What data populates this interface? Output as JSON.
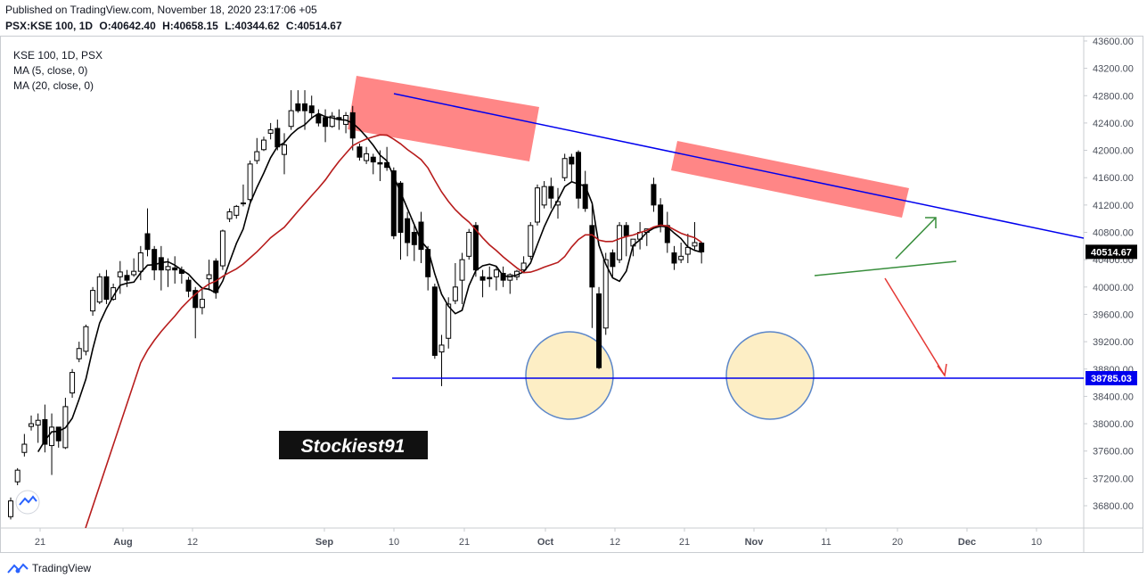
{
  "header": {
    "published": "Published on TradingView.com, November 18, 2020 23:17:06 +05",
    "symbol": "PSX:KSE 100, 1D",
    "exchange": "PSX",
    "open": "O:40642.40",
    "high": "H:40658.15",
    "low": "L:40344.62",
    "close": "C:40514.67"
  },
  "legend": {
    "title": "KSE 100, 1D, PSX",
    "ma5": "MA (5, close, 0)",
    "ma20": "MA (20, close, 0)"
  },
  "watermark": "Stockiest91",
  "footer": {
    "brand": "TradingView"
  },
  "colors": {
    "ma5": "#000000",
    "ma20": "#b71c1c",
    "trend": "#0000ee",
    "support": "#0000ee",
    "zone": "#ff5252",
    "circle": "#fdeec5",
    "up_arrow": "#388e3c",
    "down_arrow": "#e53935"
  },
  "chart_data": {
    "type": "candlestick",
    "y_axis_ticks": [
      "43600.00",
      "43200.00",
      "42800.00",
      "42400.00",
      "42000.00",
      "41600.00",
      "41200.00",
      "40800.00",
      "40400.00",
      "40000.00",
      "39600.00",
      "39200.00",
      "38800.00",
      "38400.00",
      "38000.00",
      "37600.00",
      "37200.00",
      "36800.00"
    ],
    "x_axis_ticks": [
      "21",
      "Aug",
      "12",
      "Sep",
      "10",
      "21",
      "Oct",
      "12",
      "21",
      "Nov",
      "11",
      "20",
      "Dec",
      "10"
    ],
    "price_labels": {
      "last": "40514.67",
      "support": "38785.03"
    },
    "ylim": [
      36500,
      43700
    ],
    "candles": [
      {
        "o": 36640,
        "h": 36920,
        "l": 36600,
        "c": 36870
      },
      {
        "o": 37150,
        "h": 37350,
        "l": 37100,
        "c": 37320
      },
      {
        "o": 37580,
        "h": 37850,
        "l": 37520,
        "c": 37700
      },
      {
        "o": 37960,
        "h": 38120,
        "l": 37900,
        "c": 38000
      },
      {
        "o": 37980,
        "h": 38150,
        "l": 37720,
        "c": 38050
      },
      {
        "o": 38060,
        "h": 38280,
        "l": 37580,
        "c": 37700
      },
      {
        "o": 37680,
        "h": 38150,
        "l": 37250,
        "c": 37950
      },
      {
        "o": 37950,
        "h": 37900,
        "l": 37650,
        "c": 37750
      },
      {
        "o": 37650,
        "h": 38380,
        "l": 37630,
        "c": 38250
      },
      {
        "o": 38450,
        "h": 38800,
        "l": 38380,
        "c": 38750
      },
      {
        "o": 38950,
        "h": 39200,
        "l": 38900,
        "c": 39100
      },
      {
        "o": 39060,
        "h": 39450,
        "l": 39000,
        "c": 39420
      },
      {
        "o": 39650,
        "h": 40000,
        "l": 39580,
        "c": 39950
      },
      {
        "o": 39780,
        "h": 40200,
        "l": 39750,
        "c": 40150
      },
      {
        "o": 40150,
        "h": 40250,
        "l": 39750,
        "c": 39820
      },
      {
        "o": 39820,
        "h": 40050,
        "l": 39800,
        "c": 39990
      },
      {
        "o": 40150,
        "h": 40380,
        "l": 39900,
        "c": 40220
      },
      {
        "o": 40170,
        "h": 40250,
        "l": 40000,
        "c": 40100
      },
      {
        "o": 40180,
        "h": 40420,
        "l": 40150,
        "c": 40230
      },
      {
        "o": 40230,
        "h": 40600,
        "l": 40100,
        "c": 40500
      },
      {
        "o": 40780,
        "h": 41150,
        "l": 40450,
        "c": 40550
      },
      {
        "o": 40550,
        "h": 40600,
        "l": 40100,
        "c": 40250
      },
      {
        "o": 40430,
        "h": 40600,
        "l": 39950,
        "c": 40250
      },
      {
        "o": 40250,
        "h": 40420,
        "l": 40000,
        "c": 40300
      },
      {
        "o": 40280,
        "h": 40450,
        "l": 40050,
        "c": 40250
      },
      {
        "o": 40250,
        "h": 40300,
        "l": 40050,
        "c": 40200
      },
      {
        "o": 40100,
        "h": 40150,
        "l": 39850,
        "c": 39940
      },
      {
        "o": 39950,
        "h": 40000,
        "l": 39250,
        "c": 39700
      },
      {
        "o": 39700,
        "h": 40000,
        "l": 39600,
        "c": 39820
      },
      {
        "o": 40120,
        "h": 40400,
        "l": 39950,
        "c": 40180
      },
      {
        "o": 40380,
        "h": 40420,
        "l": 39830,
        "c": 39920
      },
      {
        "o": 40310,
        "h": 40840,
        "l": 40250,
        "c": 40820
      },
      {
        "o": 41000,
        "h": 41150,
        "l": 40950,
        "c": 41100
      },
      {
        "o": 41050,
        "h": 41200,
        "l": 41000,
        "c": 41180
      },
      {
        "o": 41220,
        "h": 41500,
        "l": 41180,
        "c": 41230
      },
      {
        "o": 41280,
        "h": 41850,
        "l": 41250,
        "c": 41800
      },
      {
        "o": 41850,
        "h": 42180,
        "l": 41800,
        "c": 41980
      },
      {
        "o": 42010,
        "h": 42200,
        "l": 41990,
        "c": 42150
      },
      {
        "o": 42250,
        "h": 42400,
        "l": 42160,
        "c": 42300
      },
      {
        "o": 42320,
        "h": 42450,
        "l": 42000,
        "c": 42050
      },
      {
        "o": 41940,
        "h": 42250,
        "l": 41650,
        "c": 42080
      },
      {
        "o": 42350,
        "h": 42880,
        "l": 42300,
        "c": 42580
      },
      {
        "o": 42680,
        "h": 42880,
        "l": 42550,
        "c": 42580
      },
      {
        "o": 42680,
        "h": 42880,
        "l": 42300,
        "c": 42580
      },
      {
        "o": 42650,
        "h": 42800,
        "l": 42460,
        "c": 42550
      },
      {
        "o": 42520,
        "h": 42600,
        "l": 42350,
        "c": 42400
      },
      {
        "o": 42480,
        "h": 42600,
        "l": 42120,
        "c": 42350
      },
      {
        "o": 42350,
        "h": 42560,
        "l": 42330,
        "c": 42500
      },
      {
        "o": 42480,
        "h": 42600,
        "l": 42300,
        "c": 42450
      },
      {
        "o": 42380,
        "h": 42560,
        "l": 42250,
        "c": 42510
      },
      {
        "o": 42550,
        "h": 42650,
        "l": 42000,
        "c": 42180
      },
      {
        "o": 42050,
        "h": 42100,
        "l": 41850,
        "c": 41900
      },
      {
        "o": 41850,
        "h": 42050,
        "l": 41800,
        "c": 41950
      },
      {
        "o": 41900,
        "h": 41950,
        "l": 41650,
        "c": 41830
      },
      {
        "o": 41820,
        "h": 42000,
        "l": 41550,
        "c": 41800
      },
      {
        "o": 41820,
        "h": 42050,
        "l": 41700,
        "c": 41750
      },
      {
        "o": 41700,
        "h": 41750,
        "l": 40700,
        "c": 40750
      },
      {
        "o": 41520,
        "h": 41550,
        "l": 40400,
        "c": 40800
      },
      {
        "o": 41000,
        "h": 41100,
        "l": 40450,
        "c": 40650
      },
      {
        "o": 40800,
        "h": 40900,
        "l": 40380,
        "c": 40620
      },
      {
        "o": 40950,
        "h": 41100,
        "l": 40350,
        "c": 40550
      },
      {
        "o": 40550,
        "h": 40600,
        "l": 39950,
        "c": 40150
      },
      {
        "o": 40000,
        "h": 40050,
        "l": 38950,
        "c": 39000
      },
      {
        "o": 39050,
        "h": 39300,
        "l": 38550,
        "c": 39150
      },
      {
        "o": 39250,
        "h": 39850,
        "l": 39100,
        "c": 39750
      },
      {
        "o": 39800,
        "h": 40350,
        "l": 39750,
        "c": 40000
      },
      {
        "o": 40100,
        "h": 40500,
        "l": 39750,
        "c": 40400
      },
      {
        "o": 40450,
        "h": 40850,
        "l": 40400,
        "c": 40800
      },
      {
        "o": 40900,
        "h": 40950,
        "l": 40150,
        "c": 40250
      },
      {
        "o": 40150,
        "h": 40250,
        "l": 39850,
        "c": 40100
      },
      {
        "o": 40140,
        "h": 40300,
        "l": 40000,
        "c": 40120
      },
      {
        "o": 40150,
        "h": 40300,
        "l": 39950,
        "c": 40250
      },
      {
        "o": 40200,
        "h": 40300,
        "l": 40000,
        "c": 40100
      },
      {
        "o": 40100,
        "h": 40200,
        "l": 39900,
        "c": 40180
      },
      {
        "o": 40150,
        "h": 40250,
        "l": 40100,
        "c": 40230
      },
      {
        "o": 40250,
        "h": 40450,
        "l": 40200,
        "c": 40350
      },
      {
        "o": 40450,
        "h": 40950,
        "l": 40400,
        "c": 40900
      },
      {
        "o": 40950,
        "h": 41500,
        "l": 40900,
        "c": 41450
      },
      {
        "o": 41200,
        "h": 41550,
        "l": 41150,
        "c": 41470
      },
      {
        "o": 41470,
        "h": 41600,
        "l": 41150,
        "c": 41300
      },
      {
        "o": 41200,
        "h": 41450,
        "l": 41000,
        "c": 41250
      },
      {
        "o": 41600,
        "h": 41950,
        "l": 41550,
        "c": 41880
      },
      {
        "o": 41900,
        "h": 41950,
        "l": 41550,
        "c": 41800
      },
      {
        "o": 41970,
        "h": 42000,
        "l": 41150,
        "c": 41300
      },
      {
        "o": 41500,
        "h": 41700,
        "l": 41100,
        "c": 41150
      },
      {
        "o": 40900,
        "h": 41200,
        "l": 39400,
        "c": 40000
      },
      {
        "o": 39900,
        "h": 40000,
        "l": 38800,
        "c": 38820
      },
      {
        "o": 39400,
        "h": 40500,
        "l": 39300,
        "c": 40400
      },
      {
        "o": 40500,
        "h": 40550,
        "l": 40150,
        "c": 40300
      },
      {
        "o": 40400,
        "h": 40950,
        "l": 40350,
        "c": 40900
      },
      {
        "o": 40900,
        "h": 40950,
        "l": 40450,
        "c": 40750
      },
      {
        "o": 40600,
        "h": 40700,
        "l": 40450,
        "c": 40700
      },
      {
        "o": 40700,
        "h": 40950,
        "l": 40550,
        "c": 40800
      },
      {
        "o": 40800,
        "h": 40850,
        "l": 40600,
        "c": 40850
      },
      {
        "o": 41500,
        "h": 41600,
        "l": 41100,
        "c": 41200
      },
      {
        "o": 41200,
        "h": 41300,
        "l": 40800,
        "c": 40900
      },
      {
        "o": 40900,
        "h": 41100,
        "l": 40500,
        "c": 40650
      },
      {
        "o": 40500,
        "h": 40600,
        "l": 40250,
        "c": 40350
      },
      {
        "o": 40400,
        "h": 40650,
        "l": 40350,
        "c": 40450
      },
      {
        "o": 40480,
        "h": 40780,
        "l": 40350,
        "c": 40580
      },
      {
        "o": 40600,
        "h": 40950,
        "l": 40550,
        "c": 40650
      },
      {
        "o": 40642.4,
        "h": 40658.15,
        "l": 40344.62,
        "c": 40514.67
      }
    ]
  }
}
